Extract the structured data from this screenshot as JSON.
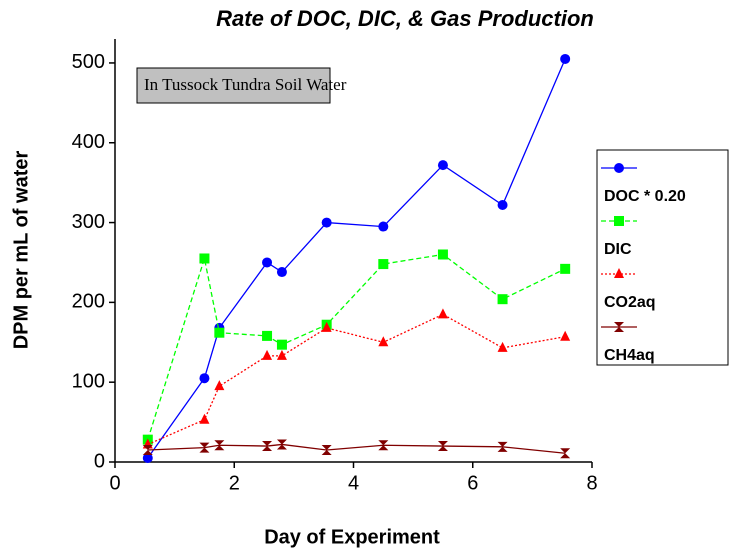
{
  "chart_data": {
    "type": "line",
    "title": "Rate of DOC, DIC, & Gas Production",
    "annotation": "In Tussock Tundra Soil Water",
    "x_label": "Day of Experiment",
    "y_label": "DPM per mL of water",
    "x": [
      0.55,
      1.5,
      1.75,
      2.55,
      2.8,
      3.55,
      4.5,
      5.5,
      6.5,
      7.55
    ],
    "series": [
      {
        "name": "DOC * 0.20",
        "color": "#0000ff",
        "marker": "circle",
        "dash": "solid",
        "values": [
          5,
          105,
          168,
          250,
          238,
          300,
          295,
          372,
          322,
          505
        ]
      },
      {
        "name": "DIC",
        "color": "#00ff00",
        "marker": "square",
        "dash": "dashed",
        "values": [
          28,
          255,
          162,
          158,
          147,
          172,
          248,
          260,
          204,
          242
        ]
      },
      {
        "name": "CO2aq",
        "color": "#ff0000",
        "marker": "triangle",
        "dash": "dotted",
        "values": [
          22,
          53,
          95,
          133,
          133,
          168,
          150,
          185,
          143,
          157
        ]
      },
      {
        "name": "CH4aq",
        "color": "#800000",
        "marker": "hourglass",
        "dash": "solid",
        "values": [
          15,
          18,
          21,
          20,
          22,
          15,
          21,
          20,
          19,
          11
        ]
      }
    ],
    "xlim": [
      0,
      8
    ],
    "xticks": [
      0,
      2,
      4,
      6,
      8
    ],
    "ylim": [
      0,
      530
    ],
    "yticks": [
      0,
      100,
      200,
      300,
      400,
      500
    ],
    "legend": "right"
  }
}
